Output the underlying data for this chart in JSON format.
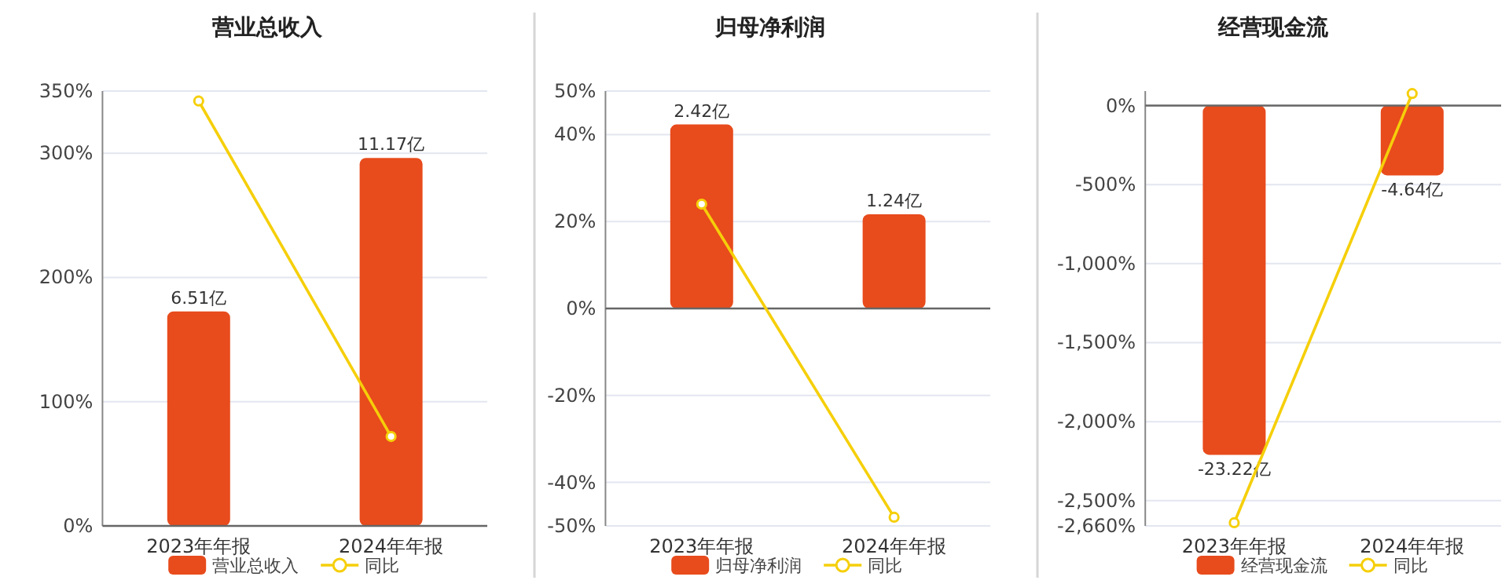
{
  "chart_data": [
    {
      "type": "bar",
      "title": "营业总收入",
      "categories": [
        "2023年年报",
        "2024年年报"
      ],
      "series": [
        {
          "name": "营业总收入",
          "color": "#e84b1c",
          "values": [
            6.51,
            11.17
          ],
          "value_labels": [
            "6.51亿",
            "11.17亿"
          ],
          "axis": "y2"
        },
        {
          "name": "同比",
          "type": "line",
          "color": "#f5cf0a",
          "values": [
            342,
            72
          ],
          "marker": "circle"
        }
      ],
      "ylim": [
        0,
        350
      ],
      "yticks": [
        {
          "value": 0,
          "label": "0%"
        },
        {
          "value": 100,
          "label": "100%"
        },
        {
          "value": 200,
          "label": "200%"
        },
        {
          "value": 300,
          "label": "300%"
        },
        {
          "value": 350,
          "label": "350%"
        }
      ],
      "y2lim": [
        0,
        13.2
      ],
      "grid": "y",
      "legend": "bottom"
    },
    {
      "type": "bar",
      "title": "归母净利润",
      "categories": [
        "2023年年报",
        "2024年年报"
      ],
      "series": [
        {
          "name": "归母净利润",
          "color": "#e84b1c",
          "values": [
            2.42,
            1.24
          ],
          "value_labels": [
            "2.42亿",
            "1.24亿"
          ],
          "axis": "y2"
        },
        {
          "name": "同比",
          "type": "line",
          "color": "#f5cf0a",
          "values": [
            24,
            -48
          ],
          "marker": "circle"
        }
      ],
      "ylim": [
        -50,
        50
      ],
      "yticks": [
        {
          "value": -50,
          "label": "-50%"
        },
        {
          "value": -40,
          "label": "-40%"
        },
        {
          "value": -20,
          "label": "-20%"
        },
        {
          "value": 0,
          "label": "0%"
        },
        {
          "value": 20,
          "label": "20%"
        },
        {
          "value": 40,
          "label": "40%"
        },
        {
          "value": 50,
          "label": "50%"
        }
      ],
      "y2lim": [
        -2.86,
        2.86
      ],
      "grid": "y",
      "legend": "bottom"
    },
    {
      "type": "bar",
      "title": "经营现金流",
      "categories": [
        "2023年年报",
        "2024年年报"
      ],
      "series": [
        {
          "name": "经营现金流",
          "color": "#e84b1c",
          "values": [
            -23.22,
            -4.64
          ],
          "value_labels": [
            "-23.22亿",
            "-4.64亿"
          ],
          "axis": "y2"
        },
        {
          "name": "同比",
          "type": "line",
          "color": "#f5cf0a",
          "values": [
            -2640,
            76
          ],
          "marker": "circle"
        }
      ],
      "ylim": [
        -2660,
        92
      ],
      "yticks": [
        {
          "value": -2660,
          "label": "-2,660%"
        },
        {
          "value": -2500,
          "label": "-2,500%"
        },
        {
          "value": -2000,
          "label": "-2,000%"
        },
        {
          "value": -1500,
          "label": "-1,500%"
        },
        {
          "value": -1000,
          "label": "-1,000%"
        },
        {
          "value": -500,
          "label": "-500%"
        },
        {
          "value": 0,
          "label": "0%"
        }
      ],
      "y2lim": [
        -27.95,
        0.97
      ],
      "grid": "y",
      "legend": "bottom"
    }
  ]
}
